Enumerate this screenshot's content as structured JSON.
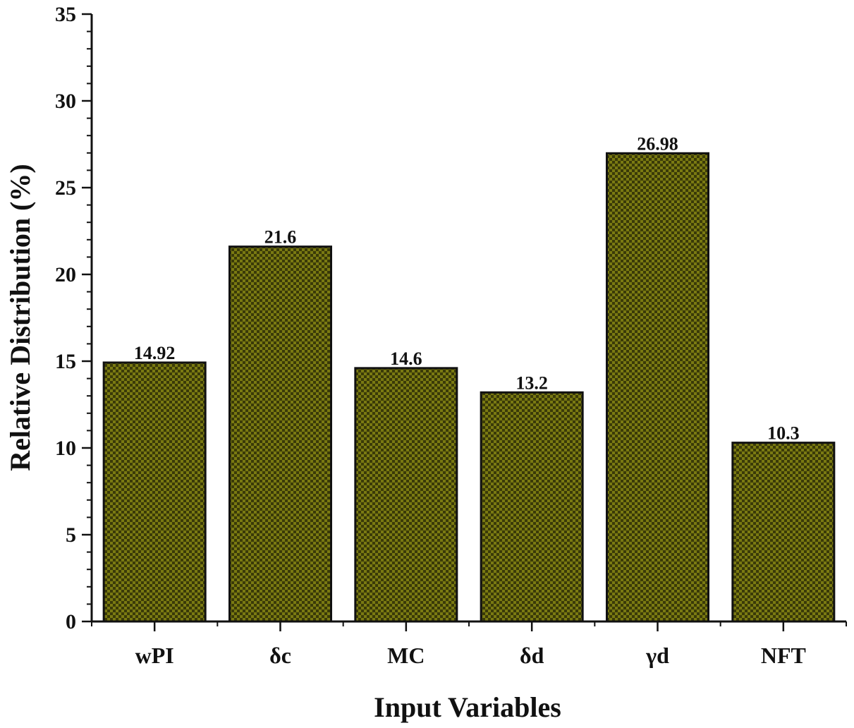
{
  "colors": {
    "bar_fill_dark": "#3a3a08",
    "bar_fill_light": "#7a7a12",
    "bar_stroke": "#111111",
    "axis": "#111111"
  },
  "chart_data": {
    "type": "bar",
    "categories": [
      "wPI",
      "δc",
      "MC",
      "δd",
      "γd",
      "NFT"
    ],
    "values": [
      14.92,
      21.6,
      14.6,
      13.2,
      26.98,
      10.3
    ],
    "data_labels": [
      "14.92",
      "21.6",
      "14.6",
      "13.2",
      "26.98",
      "10.3"
    ],
    "xlabel": "Input Variables",
    "ylabel": "Relative Distribution (%)",
    "ylim": [
      0,
      35
    ],
    "yticks": [
      0,
      5,
      10,
      15,
      20,
      25,
      30,
      35
    ],
    "grid": false,
    "legend": "none",
    "bar_pattern": "checkerboard"
  }
}
